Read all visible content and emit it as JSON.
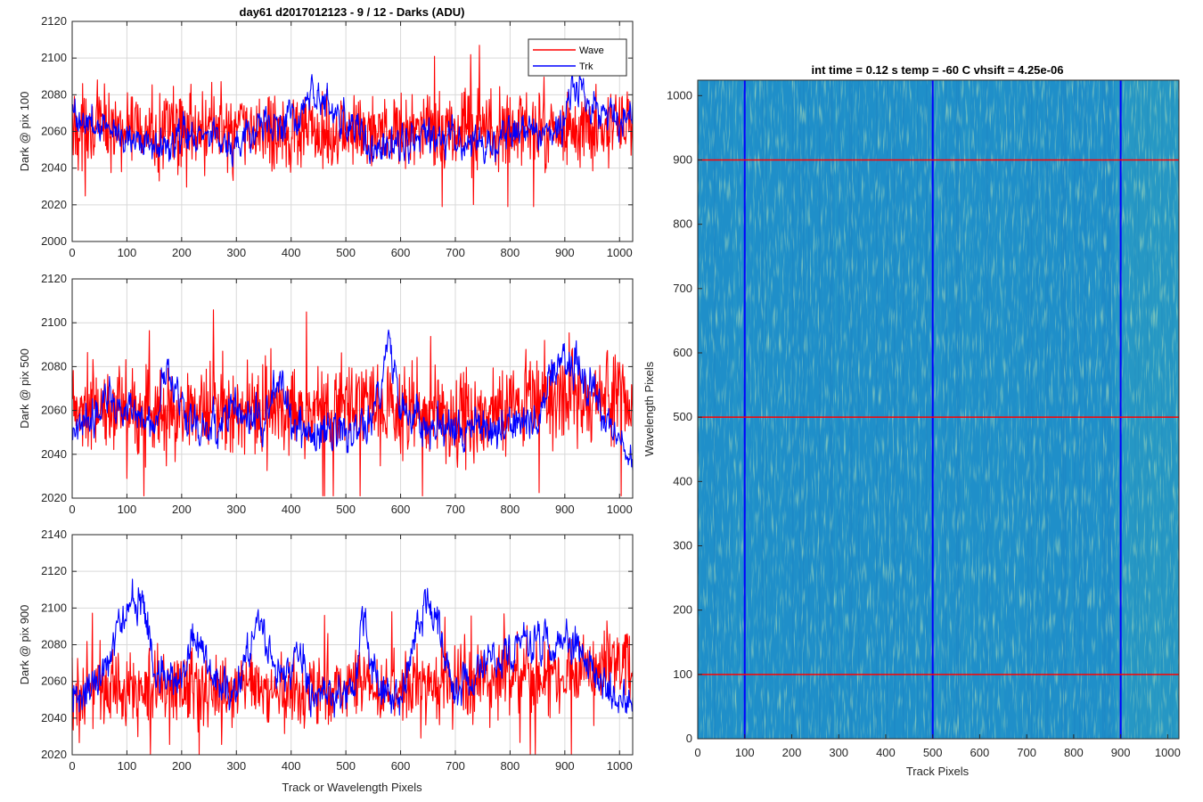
{
  "figure": {
    "title": "day61 d2017012123 - 9 / 12 - Darks (ADU)",
    "xlabel_bottom": "Track or Wavelength Pixels",
    "image_title": "int time = 0.12 s    temp = -60 C    vhsift = 4.25e-06",
    "image_xlabel": "Track Pixels",
    "image_ylabel": "Wavelength Pixels"
  },
  "colors": {
    "wave": "#ff0000",
    "trk": "#0000ff",
    "grid": "#d9d9d9",
    "image_base": "#1f8fc9",
    "image_highlight": "#79c47e"
  },
  "chart_data": [
    {
      "type": "line",
      "ylabel": "Dark @ pix 100",
      "xlim": [
        0,
        1024
      ],
      "ylim": [
        2000,
        2120
      ],
      "xticks": [
        0,
        100,
        200,
        300,
        400,
        500,
        600,
        700,
        800,
        900,
        1000
      ],
      "yticks": [
        2000,
        2020,
        2040,
        2060,
        2080,
        2100,
        2120
      ],
      "legend": {
        "position": "top-right",
        "entries": [
          "Wave",
          "Trk"
        ]
      },
      "grid": true,
      "series": [
        {
          "name": "Wave",
          "color": "#ff0000",
          "x": [
            0,
            100,
            200,
            300,
            400,
            500,
            600,
            700,
            800,
            900,
            1000,
            1024
          ],
          "y_mean": [
            2062,
            2061,
            2060,
            2061,
            2060,
            2060,
            2061,
            2060,
            2061,
            2061,
            2062,
            2062
          ],
          "y_noise_amplitude": 12,
          "y_min_observed": 2019,
          "y_max_observed": 2107
        },
        {
          "name": "Trk",
          "color": "#0000ff",
          "x": [
            0,
            50,
            100,
            150,
            200,
            250,
            300,
            350,
            400,
            450,
            500,
            550,
            600,
            650,
            700,
            750,
            800,
            850,
            900,
            920,
            950,
            1000,
            1024
          ],
          "y_mean": [
            2070,
            2062,
            2060,
            2052,
            2058,
            2058,
            2052,
            2062,
            2066,
            2076,
            2066,
            2050,
            2055,
            2060,
            2055,
            2052,
            2058,
            2060,
            2066,
            2090,
            2072,
            2068,
            2070
          ],
          "y_noise_amplitude": 6,
          "y_min_observed": 2027,
          "y_max_observed": 2115
        }
      ]
    },
    {
      "type": "line",
      "ylabel": "Dark @ pix 500",
      "xlim": [
        0,
        1024
      ],
      "ylim": [
        2020,
        2120
      ],
      "xticks": [
        0,
        100,
        200,
        300,
        400,
        500,
        600,
        700,
        800,
        900,
        1000
      ],
      "yticks": [
        2020,
        2040,
        2060,
        2080,
        2100,
        2120
      ],
      "grid": true,
      "series": [
        {
          "name": "Wave",
          "color": "#ff0000",
          "x": [
            0,
            100,
            200,
            300,
            400,
            500,
            600,
            700,
            800,
            900,
            1000,
            1024
          ],
          "y_mean": [
            2060,
            2060,
            2058,
            2060,
            2062,
            2062,
            2060,
            2058,
            2062,
            2066,
            2068,
            2062
          ],
          "y_noise_amplitude": 12,
          "y_min_observed": 2021,
          "y_max_observed": 2109
        },
        {
          "name": "Trk",
          "color": "#0000ff",
          "x": [
            0,
            50,
            100,
            150,
            170,
            200,
            250,
            300,
            350,
            380,
            400,
            450,
            500,
            550,
            580,
            600,
            650,
            700,
            750,
            800,
            850,
            900,
            950,
            1000,
            1024
          ],
          "y_mean": [
            2050,
            2062,
            2058,
            2050,
            2080,
            2058,
            2050,
            2062,
            2052,
            2078,
            2052,
            2050,
            2050,
            2055,
            2092,
            2060,
            2052,
            2052,
            2050,
            2052,
            2055,
            2085,
            2070,
            2045,
            2040
          ],
          "y_noise_amplitude": 6,
          "y_min_observed": 2022,
          "y_max_observed": 2098
        }
      ]
    },
    {
      "type": "line",
      "ylabel": "Dark @ pix 900",
      "xlabel": "Track or Wavelength Pixels",
      "xlim": [
        0,
        1024
      ],
      "ylim": [
        2020,
        2140
      ],
      "xticks": [
        0,
        100,
        200,
        300,
        400,
        500,
        600,
        700,
        800,
        900,
        1000
      ],
      "yticks": [
        2020,
        2040,
        2060,
        2080,
        2100,
        2120,
        2140
      ],
      "grid": true,
      "series": [
        {
          "name": "Wave",
          "color": "#ff0000",
          "x": [
            0,
            100,
            200,
            300,
            400,
            500,
            600,
            700,
            800,
            900,
            1000,
            1024
          ],
          "y_mean": [
            2058,
            2056,
            2055,
            2055,
            2054,
            2055,
            2056,
            2058,
            2062,
            2064,
            2070,
            2072
          ],
          "y_noise_amplitude": 12,
          "y_min_observed": 2020,
          "y_max_observed": 2115
        },
        {
          "name": "Trk",
          "color": "#0000ff",
          "x": [
            0,
            50,
            100,
            130,
            150,
            200,
            220,
            260,
            300,
            340,
            380,
            410,
            440,
            480,
            520,
            530,
            560,
            600,
            650,
            700,
            750,
            800,
            850,
            900,
            950,
            1000,
            1024
          ],
          "y_mean": [
            2050,
            2060,
            2100,
            2108,
            2070,
            2060,
            2085,
            2062,
            2055,
            2094,
            2062,
            2078,
            2058,
            2052,
            2060,
            2094,
            2055,
            2050,
            2110,
            2058,
            2064,
            2076,
            2078,
            2080,
            2064,
            2050,
            2048
          ],
          "y_noise_amplitude": 7,
          "y_min_observed": 2033,
          "y_max_observed": 2120
        }
      ]
    },
    {
      "type": "heatmap",
      "title": "int time = 0.12 s    temp = -60 C    vhsift = 4.25e-06",
      "xlabel": "Track Pixels",
      "ylabel": "Wavelength Pixels",
      "xlim": [
        0,
        1024
      ],
      "ylim": [
        0,
        1024
      ],
      "xticks": [
        0,
        100,
        200,
        300,
        400,
        500,
        600,
        700,
        800,
        900,
        1000
      ],
      "yticks": [
        0,
        100,
        200,
        300,
        400,
        500,
        600,
        700,
        800,
        900,
        1000
      ],
      "vertical_lines": {
        "color": "#0000ff",
        "x": [
          100,
          500,
          900
        ]
      },
      "horizontal_lines": {
        "color": "#ff0000",
        "y": [
          100,
          500,
          900
        ]
      }
    }
  ]
}
